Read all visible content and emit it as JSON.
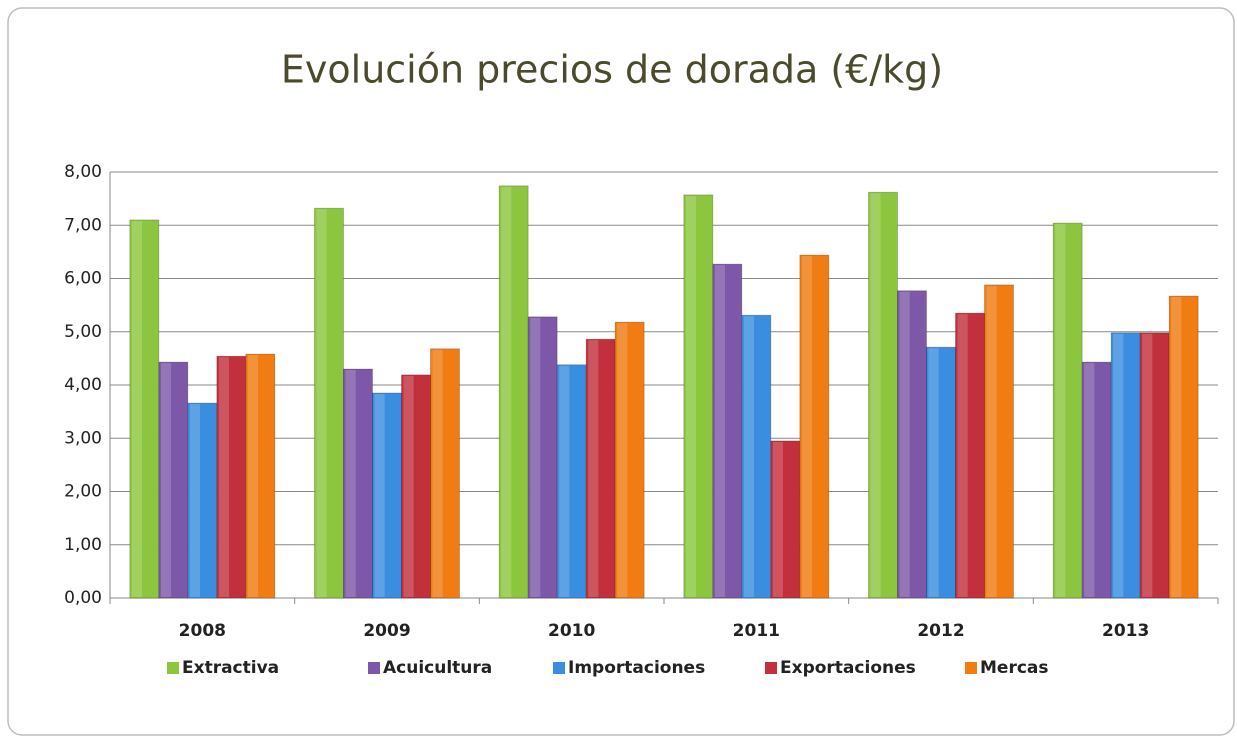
{
  "chart_data": {
    "type": "bar",
    "title": "Evolución precios de dorada  (€/kg)",
    "categories": [
      "2008",
      "2009",
      "2010",
      "2011",
      "2012",
      "2013"
    ],
    "series": [
      {
        "name": "Extractiva",
        "color": "#8cc63e",
        "values": [
          7.1,
          7.32,
          7.74,
          7.57,
          7.62,
          7.04
        ]
      },
      {
        "name": "Acuicultura",
        "color": "#7d58a8",
        "values": [
          4.43,
          4.3,
          5.28,
          6.27,
          5.77,
          4.43
        ]
      },
      {
        "name": "Importaciones",
        "color": "#3a8ee0",
        "values": [
          3.66,
          3.85,
          4.38,
          5.31,
          4.71,
          4.98
        ]
      },
      {
        "name": "Exportaciones",
        "color": "#c1303c",
        "values": [
          4.54,
          4.19,
          4.86,
          2.95,
          5.35,
          4.98
        ]
      },
      {
        "name": "Mercas",
        "color": "#f07c12",
        "values": [
          4.58,
          4.68,
          5.18,
          6.44,
          5.88,
          5.67
        ]
      }
    ],
    "ylim": [
      0,
      8
    ],
    "yticks": [
      {
        "value": 0,
        "label": "0,00"
      },
      {
        "value": 1,
        "label": "1,00"
      },
      {
        "value": 2,
        "label": "2,00"
      },
      {
        "value": 3,
        "label": "3,00"
      },
      {
        "value": 4,
        "label": "4,00"
      },
      {
        "value": 5,
        "label": "5,00"
      },
      {
        "value": 6,
        "label": "6,00"
      },
      {
        "value": 7,
        "label": "7,00"
      },
      {
        "value": 8,
        "label": "8,00"
      }
    ],
    "grid": true,
    "legend": "bottom"
  }
}
